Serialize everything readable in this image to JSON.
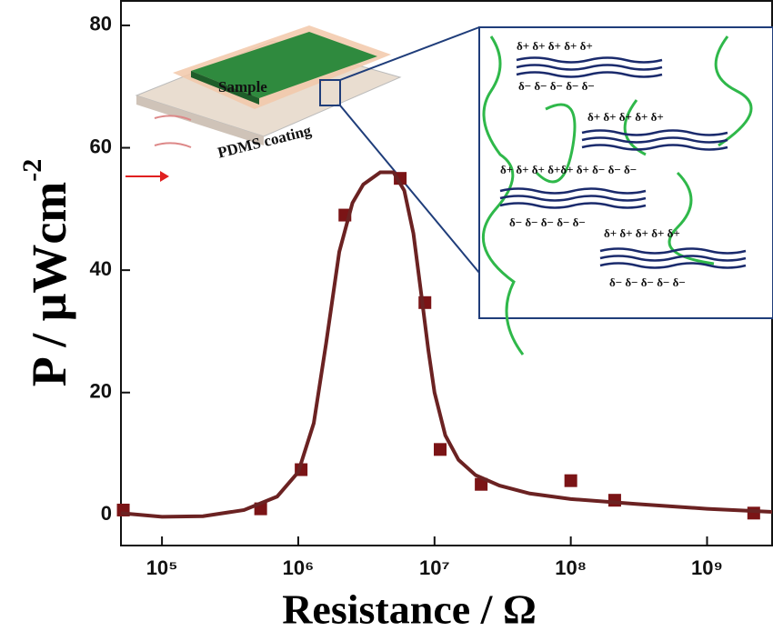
{
  "chart_data": {
    "type": "scatter",
    "x_label": "Resistance /  Ω",
    "y_label": "P / μWcm",
    "y_label_superscript": "-2",
    "xscale": "log",
    "xlim": [
      50000,
      3000000000
    ],
    "ylim": [
      -5,
      84
    ],
    "xticks": [
      {
        "value": 100000,
        "label": "10⁵"
      },
      {
        "value": 1000000,
        "label": "10⁶"
      },
      {
        "value": 10000000,
        "label": "10⁷"
      },
      {
        "value": 100000000,
        "label": "10⁸"
      },
      {
        "value": 1000000000,
        "label": "10⁹"
      }
    ],
    "yticks": [
      0,
      20,
      40,
      60,
      80
    ],
    "series": [
      {
        "type": "scatter",
        "color": "#7b1416",
        "x": [
          52000,
          530000,
          1050000,
          2200000,
          5600000,
          8500000,
          11000000,
          22000000,
          100000000,
          210000000,
          2200000000
        ],
        "values": [
          0.8,
          1.0,
          7.4,
          49,
          55,
          34.7,
          10.7,
          5,
          5.6,
          2.4,
          0.3
        ]
      },
      {
        "type": "line",
        "color": "#6b2222",
        "x": [
          50000,
          100000,
          200000,
          400000,
          700000,
          1000000,
          1300000,
          1600000,
          2000000,
          2500000,
          3000000,
          4000000,
          5000000,
          6000000,
          7000000,
          8000000,
          9000000,
          10000000,
          12000000,
          15000000,
          20000000,
          30000000,
          50000000,
          100000000,
          300000000,
          1000000000,
          3000000000
        ],
        "values": [
          0.3,
          -0.3,
          -0.2,
          0.8,
          3,
          7,
          15,
          28,
          43,
          51,
          54,
          56,
          56,
          53,
          46,
          36,
          27,
          20,
          13,
          9,
          6.5,
          4.8,
          3.5,
          2.6,
          1.8,
          1.0,
          0.5
        ]
      }
    ],
    "inset_device_labels": [
      "Sample",
      "PDMS coating"
    ],
    "inset_charge_labels": [
      "δ+  δ+  δ+   δ+  δ+",
      "δ−  δ−   δ−  δ−   δ−",
      "δ+  δ+  δ+  δ+   δ+",
      "δ+   δ+  δ+  δ+δ+ δ+  δ−  δ−   δ−",
      "δ−  δ−   δ−  δ−  δ−",
      "δ+ δ+  δ+  δ+   δ+",
      "δ−  δ−  δ−  δ−  δ−"
    ]
  }
}
